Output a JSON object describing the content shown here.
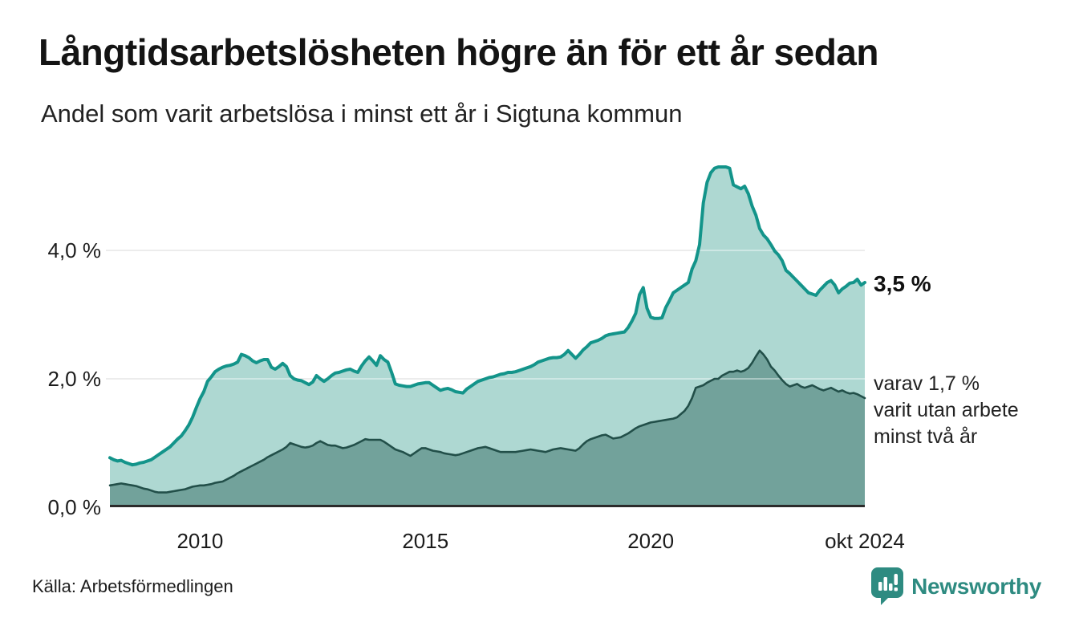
{
  "header": {
    "title": "Långtidsarbetslösheten högre än för ett år sedan",
    "subtitle": "Andel som varit arbetslösa i minst ett år i Sigtuna kommun"
  },
  "footer": {
    "source": "Källa: Arbetsförmedlingen",
    "logo_text": "Newsworthy"
  },
  "colors": {
    "gridline": "#e0e0e0",
    "gridline_over_fill": "rgba(255,255,255,0.4)",
    "baseline": "#2b2b2b",
    "text": "#1a1a1a",
    "logo_teal": "#2e8b81"
  },
  "chart_data": {
    "type": "area",
    "title": "Långtidsarbetslösheten högre än för ett år sedan",
    "subtitle": "Andel som varit arbetslösa i minst ett år i Sigtuna kommun",
    "unit": "%",
    "frequency": "monthly",
    "x_start": "2008-01",
    "x_end": "2024-10",
    "ylim": [
      0,
      5.525
    ],
    "grid": "horizontal",
    "legend": "none",
    "yticks": [
      {
        "label": "0,0 %",
        "value": 0
      },
      {
        "label": "2,0 %",
        "value": 2
      },
      {
        "label": "4,0 %",
        "value": 4
      }
    ],
    "xticks": [
      {
        "label": "2010",
        "index": 24
      },
      {
        "label": "2015",
        "index": 84
      },
      {
        "label": "2020",
        "index": 144
      },
      {
        "label": "okt 2024",
        "index": 201
      }
    ],
    "annotations": {
      "end_value_label": "3,5 %",
      "secondary_label": "varav 1,7 %\nvarit utan arbete\nminst två år"
    },
    "series": [
      {
        "name": "Andel arbetslösa minst ett år",
        "line_color": "#13948a",
        "fill_color": "#aed8d2",
        "end_value": 3.5,
        "values": [
          0.77,
          0.74,
          0.72,
          0.73,
          0.7,
          0.68,
          0.66,
          0.67,
          0.69,
          0.7,
          0.72,
          0.74,
          0.78,
          0.82,
          0.86,
          0.9,
          0.94,
          1.0,
          1.06,
          1.11,
          1.19,
          1.28,
          1.4,
          1.55,
          1.69,
          1.8,
          1.96,
          2.03,
          2.11,
          2.15,
          2.18,
          2.2,
          2.21,
          2.23,
          2.26,
          2.38,
          2.36,
          2.33,
          2.28,
          2.25,
          2.28,
          2.3,
          2.3,
          2.18,
          2.15,
          2.19,
          2.24,
          2.19,
          2.05,
          2.0,
          1.98,
          1.97,
          1.94,
          1.91,
          1.95,
          2.05,
          2.0,
          1.96,
          2.0,
          2.05,
          2.09,
          2.1,
          2.12,
          2.14,
          2.15,
          2.12,
          2.1,
          2.2,
          2.28,
          2.34,
          2.28,
          2.21,
          2.36,
          2.3,
          2.26,
          2.1,
          1.92,
          1.9,
          1.89,
          1.88,
          1.88,
          1.9,
          1.92,
          1.93,
          1.94,
          1.94,
          1.9,
          1.86,
          1.82,
          1.84,
          1.85,
          1.83,
          1.8,
          1.79,
          1.78,
          1.84,
          1.88,
          1.92,
          1.96,
          1.98,
          2.0,
          2.02,
          2.03,
          2.05,
          2.07,
          2.08,
          2.1,
          2.1,
          2.11,
          2.13,
          2.15,
          2.17,
          2.19,
          2.22,
          2.26,
          2.28,
          2.3,
          2.32,
          2.33,
          2.33,
          2.34,
          2.38,
          2.44,
          2.38,
          2.32,
          2.38,
          2.45,
          2.5,
          2.56,
          2.58,
          2.6,
          2.63,
          2.67,
          2.69,
          2.7,
          2.71,
          2.72,
          2.73,
          2.8,
          2.9,
          3.02,
          3.31,
          3.42,
          3.1,
          2.96,
          2.94,
          2.94,
          2.95,
          3.11,
          3.22,
          3.34,
          3.38,
          3.42,
          3.46,
          3.5,
          3.71,
          3.84,
          4.09,
          4.74,
          5.06,
          5.21,
          5.28,
          5.3,
          5.3,
          5.3,
          5.28,
          5.02,
          4.99,
          4.96,
          5.0,
          4.88,
          4.69,
          4.55,
          4.34,
          4.24,
          4.18,
          4.09,
          3.99,
          3.93,
          3.84,
          3.69,
          3.64,
          3.58,
          3.52,
          3.46,
          3.4,
          3.34,
          3.32,
          3.3,
          3.38,
          3.44,
          3.5,
          3.53,
          3.46,
          3.34,
          3.4,
          3.44,
          3.49,
          3.5,
          3.55,
          3.46,
          3.5
        ]
      },
      {
        "name": "varav arbetslösa minst två år",
        "line_color": "#224f49",
        "fill_color": "#72a29b",
        "end_value": 1.7,
        "values": [
          0.34,
          0.35,
          0.36,
          0.37,
          0.36,
          0.35,
          0.34,
          0.33,
          0.31,
          0.29,
          0.28,
          0.26,
          0.24,
          0.23,
          0.23,
          0.23,
          0.24,
          0.25,
          0.26,
          0.27,
          0.28,
          0.3,
          0.32,
          0.33,
          0.34,
          0.34,
          0.35,
          0.36,
          0.38,
          0.39,
          0.4,
          0.43,
          0.46,
          0.49,
          0.53,
          0.56,
          0.59,
          0.62,
          0.65,
          0.68,
          0.71,
          0.74,
          0.78,
          0.81,
          0.84,
          0.87,
          0.9,
          0.94,
          1.0,
          0.98,
          0.96,
          0.94,
          0.93,
          0.94,
          0.96,
          1.0,
          1.03,
          1.0,
          0.97,
          0.96,
          0.96,
          0.94,
          0.92,
          0.93,
          0.95,
          0.97,
          1.0,
          1.03,
          1.06,
          1.05,
          1.05,
          1.05,
          1.05,
          1.02,
          0.98,
          0.94,
          0.9,
          0.88,
          0.86,
          0.83,
          0.8,
          0.84,
          0.88,
          0.92,
          0.92,
          0.9,
          0.88,
          0.87,
          0.86,
          0.84,
          0.83,
          0.82,
          0.81,
          0.82,
          0.84,
          0.86,
          0.88,
          0.9,
          0.92,
          0.93,
          0.94,
          0.92,
          0.9,
          0.88,
          0.86,
          0.86,
          0.86,
          0.86,
          0.86,
          0.87,
          0.88,
          0.89,
          0.9,
          0.89,
          0.88,
          0.87,
          0.86,
          0.88,
          0.9,
          0.91,
          0.92,
          0.91,
          0.9,
          0.89,
          0.88,
          0.92,
          0.98,
          1.03,
          1.06,
          1.08,
          1.1,
          1.12,
          1.13,
          1.1,
          1.07,
          1.08,
          1.09,
          1.12,
          1.15,
          1.19,
          1.23,
          1.26,
          1.28,
          1.3,
          1.32,
          1.33,
          1.34,
          1.35,
          1.36,
          1.37,
          1.38,
          1.4,
          1.45,
          1.5,
          1.58,
          1.7,
          1.86,
          1.88,
          1.9,
          1.94,
          1.97,
          2.0,
          2.0,
          2.05,
          2.08,
          2.11,
          2.11,
          2.13,
          2.11,
          2.13,
          2.17,
          2.25,
          2.35,
          2.44,
          2.38,
          2.3,
          2.19,
          2.13,
          2.05,
          1.98,
          1.92,
          1.88,
          1.9,
          1.92,
          1.88,
          1.86,
          1.88,
          1.9,
          1.87,
          1.84,
          1.82,
          1.84,
          1.86,
          1.83,
          1.8,
          1.82,
          1.79,
          1.77,
          1.78,
          1.76,
          1.73,
          1.7
        ]
      }
    ]
  }
}
